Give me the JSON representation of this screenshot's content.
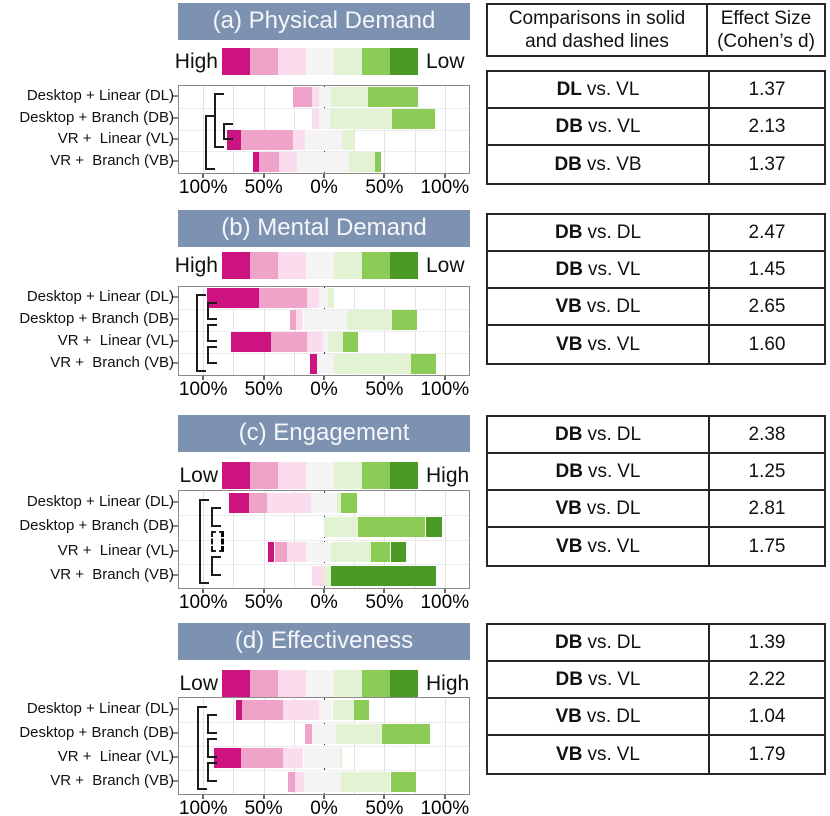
{
  "figure": {
    "row_labels": [
      "Desktop + Linear (DL)",
      "Desktop + Branch (DB)",
      "VR +  Linear (VL)",
      "VR +  Branch (VB)"
    ],
    "axis_tick_labels": [
      "100%",
      "50%",
      "0%",
      "50%",
      "100%"
    ],
    "axis_tick_values": [
      -100,
      -50,
      0,
      50,
      100
    ],
    "palette": [
      "#CC1380",
      "#F0A3C9",
      "#FBDCEC",
      "#F4F4F4",
      "#E4F2D4",
      "#8CCB55",
      "#4C9A26"
    ],
    "titlebar_color": "#7D92B0",
    "scale_description": "7-point Likert diverging stacked bars, percent of responses"
  },
  "chart_data": [
    {
      "type": "diverging-stacked-bar",
      "title": "(a) Physical Demand",
      "legend_left": "High",
      "legend_right": "Low",
      "xlim": [
        -100,
        100
      ],
      "rows": [
        {
          "code": "DL",
          "left": 26,
          "segments": [
            [
              2,
              16
            ],
            [
              3,
              6
            ],
            [
              4,
              10
            ],
            [
              5,
              30
            ],
            [
              6,
              42
            ]
          ]
        },
        {
          "code": "DB",
          "left": 10,
          "segments": [
            [
              3,
              6
            ],
            [
              4,
              9
            ],
            [
              5,
              51
            ],
            [
              6,
              36
            ]
          ]
        },
        {
          "code": "VL",
          "left": 80,
          "segments": [
            [
              1,
              11
            ],
            [
              2,
              43
            ],
            [
              3,
              10
            ],
            [
              4,
              31
            ],
            [
              5,
              11
            ]
          ]
        },
        {
          "code": "VB",
          "left": 59,
          "segments": [
            [
              1,
              5
            ],
            [
              2,
              17
            ],
            [
              3,
              15
            ],
            [
              4,
              43
            ],
            [
              5,
              21
            ],
            [
              6,
              5
            ]
          ]
        }
      ],
      "brackets": [
        {
          "from": 0,
          "to": 2,
          "x": 35,
          "style": "solid"
        },
        {
          "from": 1,
          "to": 3,
          "x": 26,
          "style": "solid"
        },
        {
          "from": 1,
          "to": 2,
          "x": 44,
          "style": "solid"
        }
      ]
    },
    {
      "type": "diverging-stacked-bar",
      "title": "(b) Mental Demand",
      "legend_left": "High",
      "legend_right": "Low",
      "xlim": [
        -100,
        100
      ],
      "rows": [
        {
          "code": "DL",
          "left": 97,
          "segments": [
            [
              1,
              43
            ],
            [
              2,
              40
            ],
            [
              3,
              10
            ],
            [
              4,
              7
            ],
            [
              5,
              5
            ]
          ]
        },
        {
          "code": "DB",
          "left": 28,
          "segments": [
            [
              2,
              5
            ],
            [
              3,
              6
            ],
            [
              4,
              36
            ],
            [
              5,
              37
            ],
            [
              6,
              21
            ]
          ]
        },
        {
          "code": "VL",
          "left": 77,
          "segments": [
            [
              1,
              33
            ],
            [
              2,
              30
            ],
            [
              3,
              13
            ],
            [
              4,
              4
            ],
            [
              5,
              13
            ],
            [
              6,
              12
            ]
          ]
        },
        {
          "code": "VB",
          "left": 12,
          "segments": [
            [
              1,
              6
            ],
            [
              4,
              14
            ],
            [
              5,
              64
            ],
            [
              6,
              21
            ]
          ]
        }
      ],
      "brackets": [
        {
          "from": 0,
          "to": 3,
          "x": 17,
          "style": "solid"
        },
        {
          "from": 0,
          "to": 1,
          "x": 28,
          "style": "solid"
        },
        {
          "from": 1,
          "to": 2,
          "x": 28,
          "style": "solid"
        },
        {
          "from": 2,
          "to": 3,
          "x": 28,
          "style": "solid"
        }
      ]
    },
    {
      "type": "diverging-stacked-bar",
      "title": "(c) Engagement",
      "legend_left": "Low",
      "legend_right": "High",
      "xlim": [
        -100,
        100
      ],
      "rows": [
        {
          "code": "DL",
          "left": 79,
          "segments": [
            [
              1,
              17
            ],
            [
              2,
              15
            ],
            [
              3,
              36
            ],
            [
              4,
              22
            ],
            [
              5,
              3
            ],
            [
              6,
              13
            ]
          ]
        },
        {
          "code": "DB",
          "left": 0,
          "segments": [
            [
              5,
              28
            ],
            [
              6,
              56
            ],
            [
              7,
              14
            ]
          ]
        },
        {
          "code": "VL",
          "left": 46,
          "segments": [
            [
              1,
              5
            ],
            [
              2,
              10
            ],
            [
              3,
              16
            ],
            [
              4,
              21
            ],
            [
              5,
              33
            ],
            [
              6,
              16
            ],
            [
              7,
              13
            ]
          ]
        },
        {
          "code": "VB",
          "left": 10,
          "segments": [
            [
              3,
              10
            ],
            [
              5,
              6
            ],
            [
              7,
              87
            ]
          ]
        }
      ],
      "brackets": [
        {
          "from": 0,
          "to": 3,
          "x": 20,
          "style": "solid"
        },
        {
          "from": 0,
          "to": 1,
          "x": 32,
          "style": "solid"
        },
        {
          "from": 1,
          "to": 2,
          "x": 32,
          "style": "dashed"
        },
        {
          "from": 2,
          "to": 3,
          "x": 32,
          "style": "solid"
        }
      ]
    },
    {
      "type": "diverging-stacked-bar",
      "title": "(d) Effectiveness",
      "legend_left": "Low",
      "legend_right": "High",
      "xlim": [
        -100,
        100
      ],
      "rows": [
        {
          "code": "DL",
          "left": 73,
          "segments": [
            [
              1,
              5
            ],
            [
              2,
              34
            ],
            [
              3,
              30
            ],
            [
              4,
              11
            ],
            [
              5,
              18
            ],
            [
              6,
              12
            ]
          ]
        },
        {
          "code": "DB",
          "left": 16,
          "segments": [
            [
              2,
              6
            ],
            [
              4,
              20
            ],
            [
              5,
              38
            ],
            [
              6,
              40
            ]
          ]
        },
        {
          "code": "VL",
          "left": 91,
          "segments": [
            [
              1,
              22
            ],
            [
              2,
              35
            ],
            [
              3,
              17
            ],
            [
              4,
              30
            ],
            [
              5,
              2
            ]
          ]
        },
        {
          "code": "VB",
          "left": 30,
          "segments": [
            [
              2,
              6
            ],
            [
              3,
              7
            ],
            [
              4,
              31
            ],
            [
              5,
              41
            ],
            [
              6,
              21
            ]
          ]
        }
      ],
      "brackets": [
        {
          "from": 0,
          "to": 3,
          "x": 18,
          "style": "solid"
        },
        {
          "from": 0,
          "to": 1,
          "x": 28,
          "style": "solid"
        },
        {
          "from": 1,
          "to": 2,
          "x": 28,
          "style": "solid"
        },
        {
          "from": 2,
          "to": 3,
          "x": 28,
          "style": "solid"
        }
      ]
    }
  ],
  "effect_table": {
    "header": {
      "col1_line1": "Comparisons in solid",
      "col1_line2": "and dashed lines",
      "col2_line1": "Effect Size",
      "col2_line2": "(Cohen’s d)"
    },
    "vs_label": "vs.",
    "groups": [
      {
        "rows": [
          {
            "a": "DL",
            "b": "VL",
            "value": "1.37"
          },
          {
            "a": "DB",
            "b": "VL",
            "value": "2.13"
          },
          {
            "a": "DB",
            "b": "VB",
            "value": "1.37"
          }
        ]
      },
      {
        "rows": [
          {
            "a": "DB",
            "b": "DL",
            "value": "2.47"
          },
          {
            "a": "DB",
            "b": "VL",
            "value": "1.45"
          },
          {
            "a": "VB",
            "b": "DL",
            "value": "2.65"
          },
          {
            "a": "VB",
            "b": "VL",
            "value": "1.60"
          }
        ]
      },
      {
        "rows": [
          {
            "a": "DB",
            "b": "DL",
            "value": "2.38"
          },
          {
            "a": "DB",
            "b": "VL",
            "value": "1.25"
          },
          {
            "a": "VB",
            "b": "DL",
            "value": "2.81"
          },
          {
            "a": "VB",
            "b": "VL",
            "value": "1.75"
          }
        ]
      },
      {
        "rows": [
          {
            "a": "DB",
            "b": "DL",
            "value": "1.39"
          },
          {
            "a": "DB",
            "b": "VL",
            "value": "2.22"
          },
          {
            "a": "VB",
            "b": "DL",
            "value": "1.04"
          },
          {
            "a": "VB",
            "b": "VL",
            "value": "1.79"
          }
        ]
      }
    ]
  }
}
